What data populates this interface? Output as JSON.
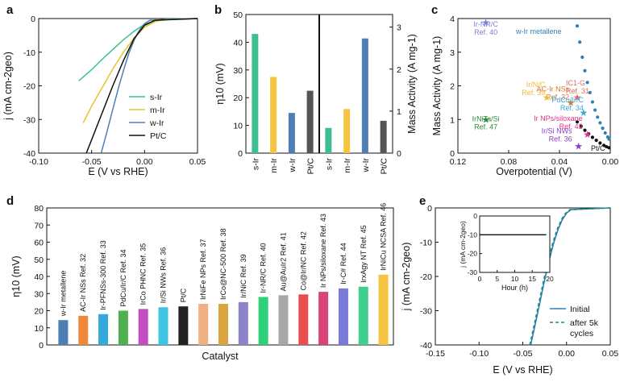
{
  "panels": {
    "a": {
      "label": "a",
      "chart_data": {
        "type": "line",
        "xlabel": "E (V vs RHE)",
        "ylabel": "j (mA cm-2geo)",
        "xlim": [
          -0.1,
          0.05
        ],
        "ylim": [
          -40,
          0
        ],
        "xticks": [
          "-0.10",
          "-0.05",
          "0.00",
          "0.05"
        ],
        "yticks": [
          "0",
          "-10",
          "-20",
          "-30",
          "-40"
        ],
        "series": [
          {
            "name": "s-Ir",
            "color": "#3fbf8f",
            "x": [
              -0.062,
              -0.05,
              -0.04,
              -0.03,
              -0.02,
              -0.01,
              0.0,
              0.01,
              0.02,
              0.05
            ],
            "y": [
              -18.5,
              -15.2,
              -12.1,
              -9.2,
              -6.3,
              -3.8,
              -1.7,
              -0.6,
              -0.2,
              0.0
            ]
          },
          {
            "name": "m-Ir",
            "color": "#e8c530",
            "x": [
              -0.058,
              -0.05,
              -0.04,
              -0.03,
              -0.02,
              -0.01,
              0.0,
              0.01,
              0.02,
              0.05
            ],
            "y": [
              -31.0,
              -26.0,
              -20.5,
              -15.0,
              -10.0,
              -5.8,
              -2.6,
              -0.9,
              -0.3,
              0.0
            ]
          },
          {
            "name": "w-Ir",
            "color": "#4d7fb5",
            "x": [
              -0.041,
              -0.035,
              -0.03,
              -0.025,
              -0.02,
              -0.015,
              -0.01,
              -0.005,
              0.0,
              0.005,
              0.05
            ],
            "y": [
              -40.0,
              -33.0,
              -27.0,
              -21.0,
              -15.5,
              -10.5,
              -6.5,
              -3.5,
              -1.5,
              -0.5,
              0.0
            ]
          },
          {
            "name": "Pt/C",
            "color": "#111111",
            "x": [
              -0.055,
              -0.05,
              -0.04,
              -0.03,
              -0.02,
              -0.01,
              0.0,
              0.01,
              0.05
            ],
            "y": [
              -40.0,
              -36.0,
              -28.0,
              -20.0,
              -12.5,
              -6.0,
              -2.0,
              -0.5,
              0.0
            ]
          }
        ]
      }
    },
    "b": {
      "label": "b",
      "chart_data": {
        "type": "bar",
        "ylabel_left": "η10 (mV)",
        "ylabel_right": "Mass Activity (A mg-1)",
        "ylim_left": [
          0,
          50
        ],
        "ylim_right": [
          0,
          3.3
        ],
        "yticks_left": [
          "0",
          "10",
          "20",
          "30",
          "40",
          "50"
        ],
        "yticks_right": [
          "0",
          "1",
          "2",
          "3"
        ],
        "groups": [
          {
            "axis": "left",
            "categories": [
              "s-Ir",
              "m-Ir",
              "w-Ir",
              "Pt/C"
            ],
            "values": [
              43,
              27.5,
              14.5,
              22.5
            ]
          },
          {
            "axis": "right",
            "categories": [
              "s-Ir",
              "m-Ir",
              "w-Ir",
              "Pt/C"
            ],
            "values": [
              0.6,
              1.05,
              2.73,
              0.77
            ]
          }
        ],
        "colors": [
          "#3fbf8f",
          "#f5c542",
          "#4d7fb5",
          "#555555"
        ]
      }
    },
    "c": {
      "label": "c",
      "chart_data": {
        "type": "scatter",
        "xlabel": "Overpotential (V)",
        "ylabel": "Mass Activity (A mg-1)",
        "xlim": [
          0.12,
          0.0
        ],
        "ylim": [
          0,
          4
        ],
        "xticks": [
          "0.12",
          "0.08",
          "0.04",
          "0.00"
        ],
        "yticks": [
          "0",
          "1",
          "2",
          "3",
          "4"
        ],
        "curves": [
          {
            "name": "w-Ir metallene",
            "color": "#2e7fb8",
            "x": [
              0.026,
              0.024,
              0.022,
              0.02,
              0.018,
              0.016,
              0.014,
              0.012,
              0.01,
              0.008,
              0.006,
              0.004,
              0.002,
              0.001
            ],
            "y": [
              3.78,
              3.3,
              2.85,
              2.45,
              2.1,
              1.8,
              1.52,
              1.28,
              1.07,
              0.9,
              0.74,
              0.6,
              0.48,
              0.42
            ]
          },
          {
            "name": "Pt/C",
            "color": "#111111",
            "x": [
              0.026,
              0.023,
              0.02,
              0.017,
              0.014,
              0.011,
              0.008,
              0.005,
              0.003,
              0.001
            ],
            "y": [
              0.93,
              0.8,
              0.68,
              0.57,
              0.47,
              0.38,
              0.3,
              0.23,
              0.19,
              0.16
            ]
          }
        ],
        "points": [
          {
            "label": "Ir-NR/C",
            "ref": "Ref. 40",
            "x": 0.098,
            "y": 3.88,
            "color": "#7e7ed6"
          },
          {
            "label": "IC1-G",
            "ref": "Ref. 31",
            "x": 0.026,
            "y": 1.65,
            "color": "#e26a6a"
          },
          {
            "label": "AC-Ir NSs",
            "ref": "Ref. 32",
            "x": 0.031,
            "y": 1.5,
            "color": "#d67a30"
          },
          {
            "label": "Ir/N/C",
            "ref": "Ref. 39",
            "x": 0.05,
            "y": 1.65,
            "color": "#f0b83a"
          },
          {
            "label": "PdCu/Ir/C",
            "ref": "Ref. 34",
            "x": 0.021,
            "y": 1.2,
            "color": "#35a9d9"
          },
          {
            "label": "IrNiTa/Si",
            "ref": "Ref. 47",
            "x": 0.098,
            "y": 1.0,
            "color": "#2e8b3a"
          },
          {
            "label": "Ir NPs/siloxane",
            "ref": "Ref. 43",
            "x": 0.018,
            "y": 0.55,
            "color": "#e0338a"
          },
          {
            "label": "Ir/Si NWs",
            "ref": "Ref. 36",
            "x": 0.025,
            "y": 0.2,
            "color": "#8b3ec2"
          }
        ]
      }
    },
    "d": {
      "label": "d",
      "chart_data": {
        "type": "bar",
        "xlabel": "Catalyst",
        "ylabel": "η10 (mV)",
        "ylim": [
          0,
          80
        ],
        "yticks": [
          "0",
          "10",
          "20",
          "30",
          "40",
          "50",
          "60",
          "70",
          "80"
        ],
        "categories": [
          "w-Ir metallene",
          "AC-Ir NSs Ref. 32",
          "Ir-PFNSs-300 Ref. 33",
          "PdCu/Ir/C Ref. 34",
          "IrCo PHNC Ref. 35",
          "Ir/Si NWs Ref. 36",
          "Pt/C",
          "IrNiFe NPs Ref. 37",
          "IrCo@NC-500 Ref. 38",
          "Ir/NiC Ref. 39",
          "Ir-NR/C Ref. 40",
          "Au@AuIr2 Ref. 41",
          "Co@Ir/NC Ref. 42",
          "Ir NPs/siloxane Ref. 43",
          "Ir-C# Ref. 44",
          "IrxAgy NT Ref. 45",
          "IrNiCu NCSA Ref. 46"
        ],
        "values": [
          14.5,
          17,
          18,
          20,
          21,
          22,
          22.5,
          24,
          24,
          25,
          28,
          29,
          29.5,
          31,
          33,
          34,
          41
        ],
        "colors": [
          "#4d7fb5",
          "#f0883a",
          "#35a9d9",
          "#4fb04f",
          "#c24fc2",
          "#3ec4e0",
          "#222222",
          "#f0b083",
          "#d9a53f",
          "#8c84c8",
          "#2fd07a",
          "#a8a8a8",
          "#e85050",
          "#d8447a",
          "#7a7ad9",
          "#3fcf8f",
          "#f5c542"
        ]
      }
    },
    "e": {
      "label": "e",
      "chart_data": {
        "type": "line",
        "xlabel": "E (V vs RHE)",
        "ylabel": "j (mA cm-2geo)",
        "xlim": [
          -0.15,
          0.05
        ],
        "ylim": [
          -40,
          0
        ],
        "xticks": [
          "-0.15",
          "-0.10",
          "-0.05",
          "0.00",
          "0.05"
        ],
        "yticks": [
          "0",
          "-10",
          "-20",
          "-30",
          "-40"
        ],
        "series": [
          {
            "name": "Initial",
            "color": "#2e7fb8",
            "style": "solid",
            "x": [
              -0.041,
              -0.035,
              -0.03,
              -0.025,
              -0.02,
              -0.015,
              -0.01,
              -0.005,
              0.0,
              0.005,
              0.05
            ],
            "y": [
              -40.0,
              -33.0,
              -27.0,
              -21.0,
              -15.5,
              -10.5,
              -6.5,
              -3.5,
              -1.5,
              -0.5,
              0.0
            ]
          },
          {
            "name": "after 5k cycles",
            "color": "#1a8a7a",
            "style": "dashed",
            "x": [
              -0.042,
              -0.036,
              -0.031,
              -0.026,
              -0.021,
              -0.016,
              -0.011,
              -0.006,
              -0.001,
              0.004,
              0.05
            ],
            "y": [
              -40.0,
              -33.0,
              -27.0,
              -21.0,
              -15.5,
              -10.5,
              -6.5,
              -3.5,
              -1.5,
              -0.5,
              0.0
            ]
          }
        ],
        "inset": {
          "type": "line",
          "xlabel": "Hour (h)",
          "ylabel": "j (mA cm-2geo)",
          "xlim": [
            0,
            20
          ],
          "ylim": [
            -30,
            0
          ],
          "xticks": [
            "0",
            "5",
            "10",
            "15",
            "20"
          ],
          "yticks": [
            "0",
            "-10",
            "-20",
            "-30"
          ],
          "x": [
            0,
            5,
            10,
            15,
            19
          ],
          "y": [
            -10,
            -10,
            -10,
            -10,
            -10
          ]
        }
      }
    }
  }
}
